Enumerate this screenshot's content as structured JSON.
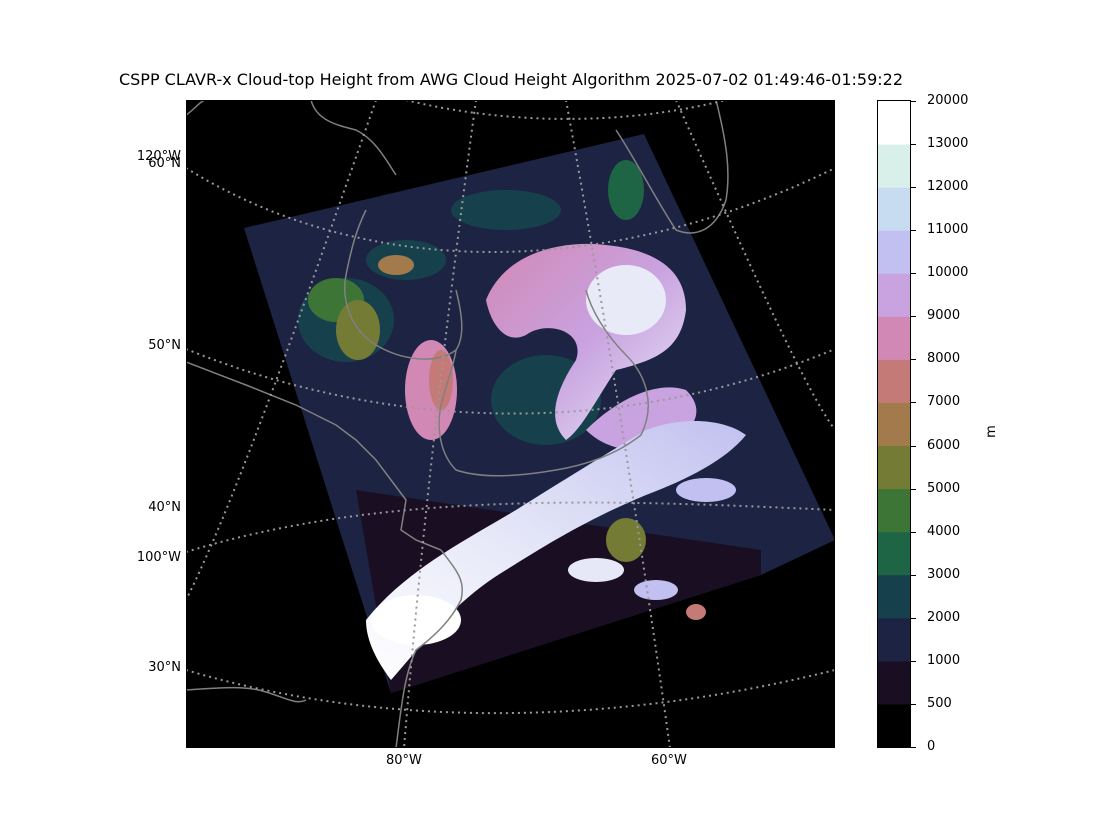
{
  "title": "CSPP CLAVR-x Cloud-top Height from AWG Cloud Height Algorithm 2025-07-02 01:49:46-01:59:22",
  "map": {
    "lat_labels": [
      "60°N",
      "50°N",
      "40°N",
      "30°N"
    ],
    "lon_labels_left": [
      "120°W",
      "100°W"
    ],
    "lon_labels_bottom": [
      "80°W",
      "60°W"
    ],
    "background": "#000000",
    "coastline_color": "#808080",
    "gridline_color": "#999999"
  },
  "colorbar": {
    "unit": "m",
    "ticks": [
      "0",
      "500",
      "1000",
      "2000",
      "3000",
      "4000",
      "5000",
      "6000",
      "7000",
      "8000",
      "9000",
      "10000",
      "11000",
      "12000",
      "13000",
      "20000"
    ],
    "colors": [
      "#000000",
      "#1a0f22",
      "#1d2342",
      "#17404d",
      "#1e6546",
      "#3d7537",
      "#737b35",
      "#a37a4c",
      "#c47a77",
      "#d288b4",
      "#c9a2e0",
      "#c2c0f0",
      "#c7dcf0",
      "#d9efe9",
      "#ffffff"
    ]
  }
}
